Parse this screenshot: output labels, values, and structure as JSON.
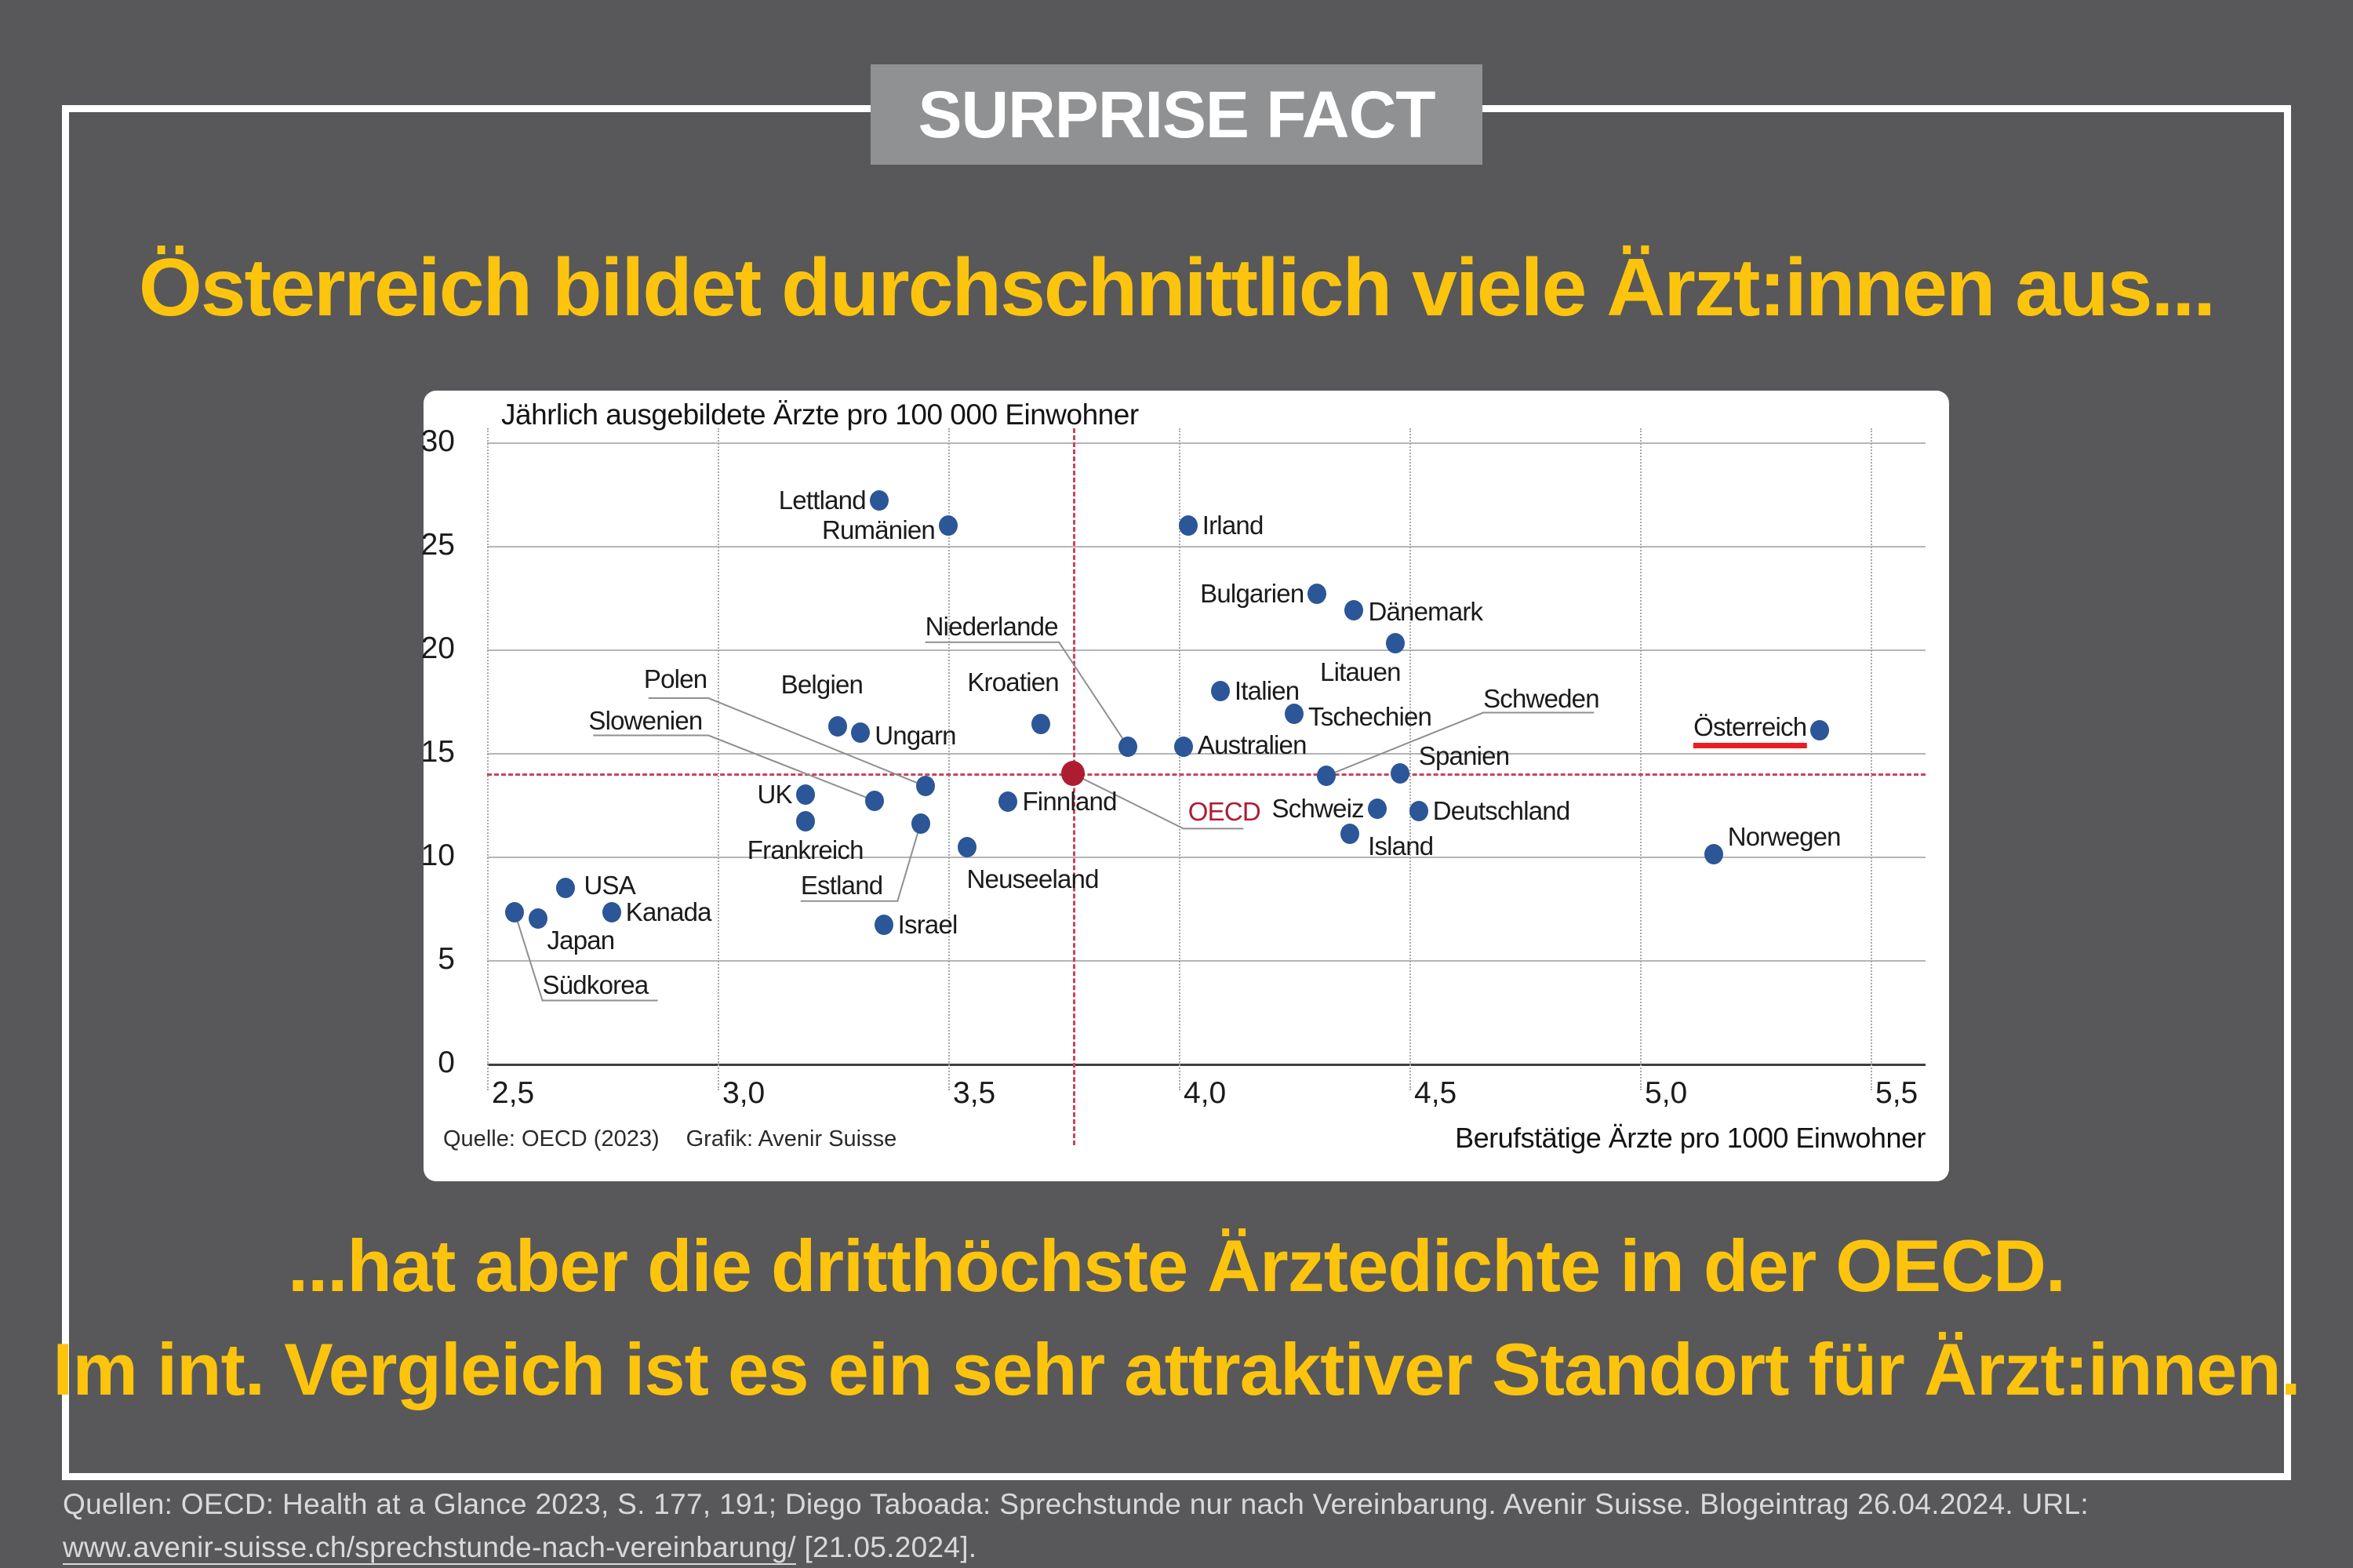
{
  "badge": {
    "label": "SURPRISE FACT"
  },
  "headline": "Österreich bildet durchschnittlich viele Ärzt:innen aus...",
  "subtitle": {
    "line1": "...hat aber die dritthöchste Ärztedichte in der OECD.",
    "line2": "Im int. Vergleich ist es ein sehr attraktiver Standort für Ärzt:innen."
  },
  "footer": {
    "line1": "Quellen: OECD: Health at a Glance 2023, S. 177, 191; Diego Taboada: Sprechstunde nur nach Vereinbarung. Avenir Suisse. Blogeintrag 26.04.2024. URL:",
    "link": "www.avenir-suisse.ch/sprechstunde-nach-vereinbarung/",
    "suffix": " [21.05.2024]."
  },
  "colors": {
    "background": "#58585A",
    "frame": "#FFFFFF",
    "badge_bg": "#8F9193",
    "accent_yellow": "#FDC40D",
    "point_blue": "#2B5697",
    "oecd_red": "#AE1C32",
    "ref_dash": "#C8445C",
    "underline_red": "#ED1C24",
    "footer_text": "#D8D9DA"
  },
  "chart_data": {
    "type": "scatter",
    "title": "Jährlich ausgebildete Ärzte pro 100 000 Einwohner",
    "xlabel": "Berufstätige Ärzte pro 1000 Einwohner",
    "source": "Quelle: OECD (2023)",
    "credit": "Grafik: Avenir Suisse",
    "xlim": [
      2.5,
      5.65
    ],
    "ylim": [
      0,
      30
    ],
    "grid": "on",
    "xticks": [
      {
        "v": 2.5,
        "label": "2,5"
      },
      {
        "v": 3.0,
        "label": "3,0"
      },
      {
        "v": 3.5,
        "label": "3,5"
      },
      {
        "v": 4.0,
        "label": "4,0"
      },
      {
        "v": 4.5,
        "label": "4,5"
      },
      {
        "v": 5.0,
        "label": "5,0"
      },
      {
        "v": 5.5,
        "label": "5,5"
      }
    ],
    "yticks": [
      {
        "v": 0,
        "label": "0"
      },
      {
        "v": 5,
        "label": "5"
      },
      {
        "v": 10,
        "label": "10"
      },
      {
        "v": 15,
        "label": "15"
      },
      {
        "v": 20,
        "label": "20"
      },
      {
        "v": 25,
        "label": "25"
      },
      {
        "v": 30,
        "label": "30"
      }
    ],
    "reference_lines": {
      "x": 3.77,
      "y": 14.0
    },
    "points": [
      {
        "name": "Lettland",
        "x": 3.35,
        "y": 27.2,
        "label": "left"
      },
      {
        "name": "Rumänien",
        "x": 3.5,
        "y": 26.0,
        "label": "left",
        "ldy": 6
      },
      {
        "name": "Irland",
        "x": 4.02,
        "y": 26.0,
        "label": "right"
      },
      {
        "name": "Bulgarien",
        "x": 4.3,
        "y": 22.7,
        "label": "left"
      },
      {
        "name": "Dänemark",
        "x": 4.38,
        "y": 21.9,
        "label": "right",
        "ldy": 2
      },
      {
        "name": "Litauen",
        "x": 4.47,
        "y": 20.3,
        "label": "below",
        "ldx": -45
      },
      {
        "name": "Italien",
        "x": 4.09,
        "y": 18.0,
        "label": "right"
      },
      {
        "name": "Tschechien",
        "x": 4.25,
        "y": 16.9,
        "label": "right",
        "ldy": 4
      },
      {
        "name": "Kroatien",
        "x": 3.7,
        "y": 16.4,
        "label": "above",
        "ldx": -35
      },
      {
        "name": "Belgien",
        "x": 3.26,
        "y": 16.3,
        "label": "above",
        "ldx": -20
      },
      {
        "name": "Ungarn",
        "x": 3.31,
        "y": 16.0,
        "label": "right",
        "ldy": 4
      },
      {
        "name": "Österreich",
        "x": 5.39,
        "y": 16.1,
        "label": "left",
        "underline": "#ED1C24"
      },
      {
        "name": "Niederlande",
        "x": 3.89,
        "y": 15.3,
        "label": "custom",
        "lx": 3.45,
        "ly": 21.1,
        "leader": [
          [
            3.45,
            20.35
          ],
          [
            3.74,
            20.35
          ],
          [
            3.89,
            15.3
          ]
        ]
      },
      {
        "name": "Australien",
        "x": 4.01,
        "y": 15.3,
        "label": "right",
        "ldy": -2
      },
      {
        "name": "Spanien",
        "x": 4.48,
        "y": 14.0,
        "label": "custom",
        "lx": 4.52,
        "ly": 14.85
      },
      {
        "name": "Schweden",
        "x": 4.32,
        "y": 13.9,
        "label": "custom",
        "lx": 4.66,
        "ly": 17.6,
        "leader": [
          [
            4.9,
            16.95
          ],
          [
            4.66,
            16.95
          ],
          [
            4.32,
            13.9
          ]
        ]
      },
      {
        "name": "OECD",
        "x": 3.77,
        "y": 14.0,
        "label": "custom",
        "lx": 4.02,
        "ly": 12.15,
        "color": "#AE1C32",
        "r": 15,
        "label_color": "#AE1C32",
        "leader": [
          [
            3.77,
            14.0
          ],
          [
            4.01,
            11.35
          ],
          [
            4.14,
            11.35
          ]
        ]
      },
      {
        "name": "Polen",
        "x": 3.45,
        "y": 13.4,
        "label": "custom",
        "lx": 2.84,
        "ly": 18.55,
        "leader": [
          [
            2.85,
            17.65
          ],
          [
            2.98,
            17.65
          ],
          [
            3.45,
            13.4
          ]
        ]
      },
      {
        "name": "UK",
        "x": 3.19,
        "y": 13.0,
        "label": "left"
      },
      {
        "name": "Slowenien",
        "x": 3.34,
        "y": 12.7,
        "label": "custom",
        "lx": 2.72,
        "ly": 16.55,
        "leader": [
          [
            2.73,
            15.85
          ],
          [
            2.98,
            15.85
          ],
          [
            3.34,
            12.7
          ]
        ]
      },
      {
        "name": "Finnland",
        "x": 3.63,
        "y": 12.65,
        "label": "right"
      },
      {
        "name": "Schweiz",
        "x": 4.43,
        "y": 12.3,
        "label": "left"
      },
      {
        "name": "Deutschland",
        "x": 4.52,
        "y": 12.2,
        "label": "right"
      },
      {
        "name": "Frankreich",
        "x": 3.19,
        "y": 11.7,
        "label": "below"
      },
      {
        "name": "Estland",
        "x": 3.44,
        "y": 11.6,
        "label": "custom",
        "lx": 3.18,
        "ly": 8.6,
        "leader": [
          [
            3.18,
            7.85
          ],
          [
            3.39,
            7.85
          ],
          [
            3.44,
            11.6
          ]
        ]
      },
      {
        "name": "Island",
        "x": 4.37,
        "y": 11.1,
        "label": "custom",
        "lx": 4.41,
        "ly": 10.5
      },
      {
        "name": "Neuseeland",
        "x": 3.54,
        "y": 10.45,
        "label": "custom",
        "lx": 3.54,
        "ly": 8.9
      },
      {
        "name": "Norwegen",
        "x": 5.16,
        "y": 10.1,
        "label": "custom",
        "lx": 5.19,
        "ly": 10.95
      },
      {
        "name": "USA",
        "x": 2.67,
        "y": 8.5,
        "label": "custom",
        "lx": 2.71,
        "ly": 8.6
      },
      {
        "name": "Kanada",
        "x": 2.77,
        "y": 7.3,
        "label": "right"
      },
      {
        "name": "Südkorea",
        "x": 2.56,
        "y": 7.3,
        "label": "custom",
        "lx": 2.62,
        "ly": 3.8,
        "leader": [
          [
            2.56,
            7.3
          ],
          [
            2.62,
            3.05
          ],
          [
            2.87,
            3.05
          ]
        ]
      },
      {
        "name": "Japan",
        "x": 2.61,
        "y": 7.0,
        "label": "custom",
        "lx": 2.63,
        "ly": 5.95
      },
      {
        "name": "Israel",
        "x": 3.36,
        "y": 6.7,
        "label": "right"
      }
    ]
  }
}
